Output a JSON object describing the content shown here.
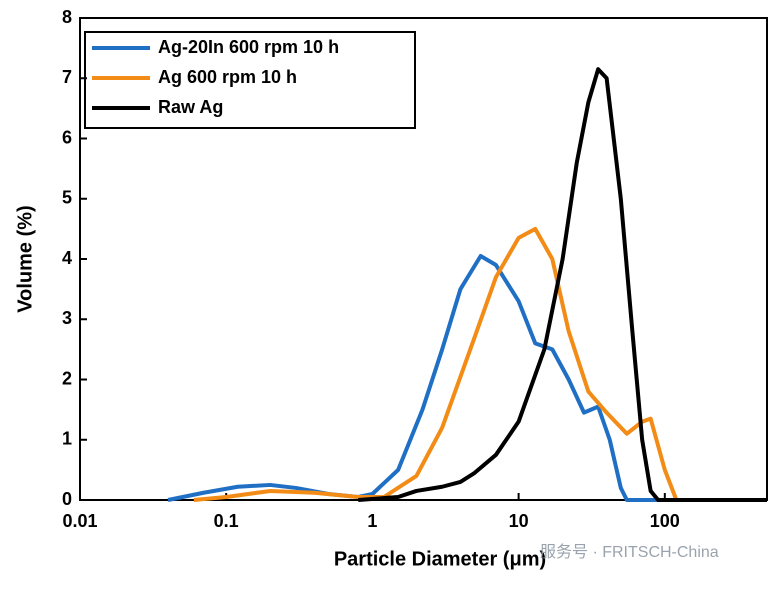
{
  "chart_data": {
    "type": "line",
    "xlabel": "Particle Diameter (μm)",
    "ylabel": "Volume (%)",
    "xscale": "log",
    "xlim": [
      0.01,
      500
    ],
    "xticks": [
      0.01,
      0.1,
      1,
      10,
      100
    ],
    "ylim": [
      0,
      8
    ],
    "yticks": [
      0,
      1,
      2,
      3,
      4,
      5,
      6,
      7,
      8
    ],
    "legend": "upper left",
    "watermark": "服务号 · FRITSCH-China",
    "series": [
      {
        "name": "Ag-20In 600 rpm 10 h",
        "color": "#1f6fc5",
        "x": [
          0.04,
          0.07,
          0.12,
          0.2,
          0.3,
          0.5,
          0.8,
          1,
          1.5,
          2.2,
          3,
          4,
          5.5,
          7,
          10,
          13,
          17,
          22,
          28,
          35,
          42,
          50,
          55,
          500
        ],
        "values": [
          0,
          0.12,
          0.22,
          0.25,
          0.2,
          0.1,
          0.05,
          0.1,
          0.5,
          1.5,
          2.5,
          3.5,
          4.05,
          3.9,
          3.3,
          2.6,
          2.5,
          2.0,
          1.45,
          1.55,
          1.0,
          0.2,
          0,
          0
        ]
      },
      {
        "name": "Ag 600 rpm 10 h",
        "color": "#f28c16",
        "x": [
          0.06,
          0.1,
          0.2,
          0.4,
          0.8,
          1.2,
          2,
          3,
          5,
          7,
          10,
          13,
          17,
          22,
          30,
          40,
          55,
          70,
          80,
          100,
          120,
          500
        ],
        "values": [
          0,
          0.05,
          0.15,
          0.12,
          0.05,
          0.05,
          0.4,
          1.2,
          2.7,
          3.7,
          4.35,
          4.5,
          4.0,
          2.8,
          1.8,
          1.45,
          1.1,
          1.3,
          1.35,
          0.5,
          0,
          0
        ]
      },
      {
        "name": "Raw Ag",
        "color": "#000000",
        "x": [
          0.8,
          1.5,
          2,
          3,
          4,
          5,
          7,
          10,
          15,
          20,
          25,
          30,
          35,
          40,
          50,
          60,
          70,
          80,
          90,
          500
        ],
        "values": [
          0,
          0.05,
          0.15,
          0.22,
          0.3,
          0.45,
          0.75,
          1.3,
          2.5,
          4.0,
          5.6,
          6.6,
          7.15,
          7.0,
          5.0,
          2.8,
          1.0,
          0.15,
          0,
          0
        ]
      }
    ]
  }
}
